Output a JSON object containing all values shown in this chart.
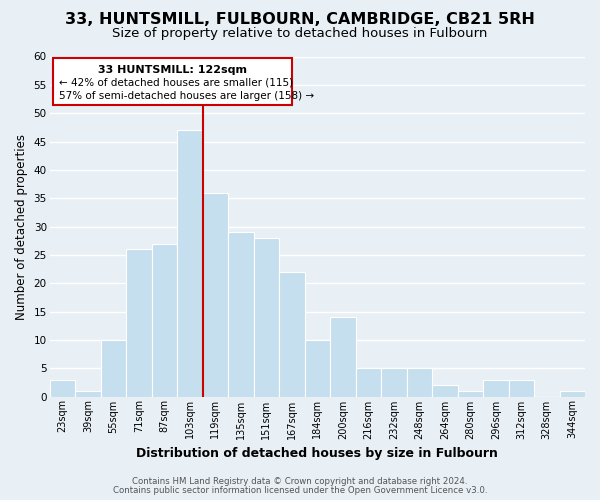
{
  "title": "33, HUNTSMILL, FULBOURN, CAMBRIDGE, CB21 5RH",
  "subtitle": "Size of property relative to detached houses in Fulbourn",
  "xlabel": "Distribution of detached houses by size in Fulbourn",
  "ylabel": "Number of detached properties",
  "footer_line1": "Contains HM Land Registry data © Crown copyright and database right 2024.",
  "footer_line2": "Contains public sector information licensed under the Open Government Licence v3.0.",
  "bin_labels": [
    "23sqm",
    "39sqm",
    "55sqm",
    "71sqm",
    "87sqm",
    "103sqm",
    "119sqm",
    "135sqm",
    "151sqm",
    "167sqm",
    "184sqm",
    "200sqm",
    "216sqm",
    "232sqm",
    "248sqm",
    "264sqm",
    "280sqm",
    "296sqm",
    "312sqm",
    "328sqm",
    "344sqm"
  ],
  "bar_heights": [
    3,
    1,
    10,
    26,
    27,
    47,
    36,
    29,
    28,
    22,
    10,
    14,
    5,
    5,
    5,
    2,
    1,
    3,
    3,
    0,
    1
  ],
  "bar_color": "#c5dfee",
  "bar_edge_color": "#ffffff",
  "highlight_line_color": "#cc0000",
  "annotation_box_text_line1": "33 HUNTSMILL: 122sqm",
  "annotation_box_text_line2": "← 42% of detached houses are smaller (115)",
  "annotation_box_text_line3": "57% of semi-detached houses are larger (158) →",
  "annotation_box_edge_color": "#cc0000",
  "annotation_box_bg_color": "#ffffff",
  "ylim": [
    0,
    60
  ],
  "yticks": [
    0,
    5,
    10,
    15,
    20,
    25,
    30,
    35,
    40,
    45,
    50,
    55,
    60
  ],
  "background_color": "#e8eff5",
  "grid_color": "#ffffff",
  "title_fontsize": 11.5,
  "subtitle_fontsize": 9.5
}
